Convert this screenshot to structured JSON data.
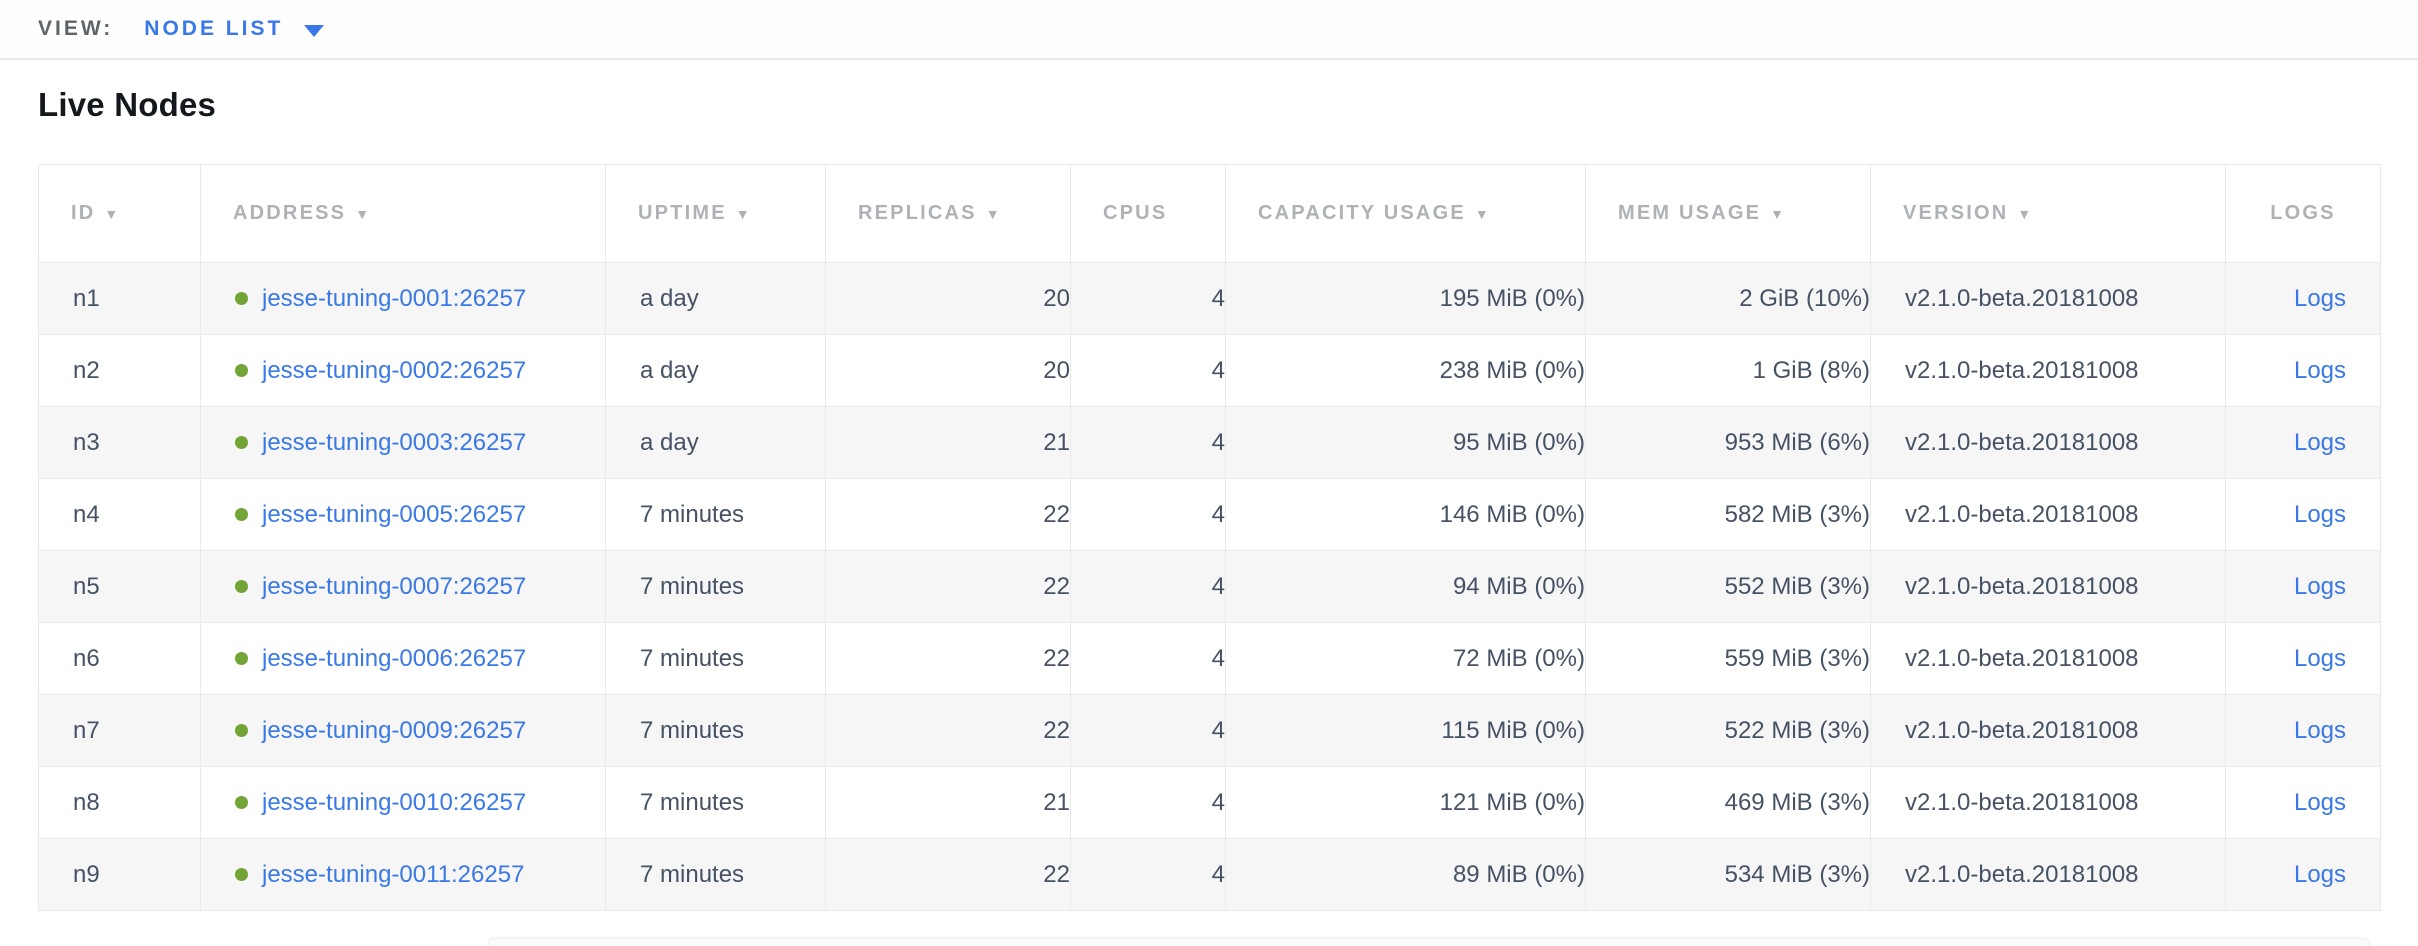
{
  "view_bar": {
    "label": "VIEW:",
    "selected": "NODE LIST"
  },
  "page": {
    "heading": "Live Nodes"
  },
  "colors": {
    "accent_blue": "#3b78e7",
    "link_blue": "#3b78e7",
    "live_green": "#73a438",
    "header_gray": "#aeb2b6",
    "cell_text": "#465264",
    "row_stripe": "#f6f6f6",
    "border": "#e9e9e9"
  },
  "table": {
    "columns": [
      {
        "key": "id",
        "label": "ID",
        "sortable": true,
        "align": "left"
      },
      {
        "key": "address",
        "label": "ADDRESS",
        "sortable": true,
        "align": "left"
      },
      {
        "key": "uptime",
        "label": "UPTIME",
        "sortable": true,
        "align": "left"
      },
      {
        "key": "replicas",
        "label": "REPLICAS",
        "sortable": true,
        "align": "right"
      },
      {
        "key": "cpus",
        "label": "CPUS",
        "sortable": false,
        "align": "right"
      },
      {
        "key": "capacity",
        "label": "CAPACITY USAGE",
        "sortable": true,
        "align": "right"
      },
      {
        "key": "mem",
        "label": "MEM USAGE",
        "sortable": true,
        "align": "right"
      },
      {
        "key": "version",
        "label": "VERSION",
        "sortable": true,
        "align": "left"
      },
      {
        "key": "logs",
        "label": "LOGS",
        "sortable": false,
        "align": "center"
      }
    ],
    "rows": [
      {
        "id": "n1",
        "status": "live",
        "address": "jesse-tuning-0001:26257",
        "uptime": "a day",
        "replicas": "20",
        "cpus": "4",
        "capacity": "195 MiB (0%)",
        "mem": "2 GiB (10%)",
        "version": "v2.1.0-beta.20181008",
        "logs": "Logs"
      },
      {
        "id": "n2",
        "status": "live",
        "address": "jesse-tuning-0002:26257",
        "uptime": "a day",
        "replicas": "20",
        "cpus": "4",
        "capacity": "238 MiB (0%)",
        "mem": "1 GiB (8%)",
        "version": "v2.1.0-beta.20181008",
        "logs": "Logs"
      },
      {
        "id": "n3",
        "status": "live",
        "address": "jesse-tuning-0003:26257",
        "uptime": "a day",
        "replicas": "21",
        "cpus": "4",
        "capacity": "95 MiB (0%)",
        "mem": "953 MiB (6%)",
        "version": "v2.1.0-beta.20181008",
        "logs": "Logs"
      },
      {
        "id": "n4",
        "status": "live",
        "address": "jesse-tuning-0005:26257",
        "uptime": "7 minutes",
        "replicas": "22",
        "cpus": "4",
        "capacity": "146 MiB (0%)",
        "mem": "582 MiB (3%)",
        "version": "v2.1.0-beta.20181008",
        "logs": "Logs"
      },
      {
        "id": "n5",
        "status": "live",
        "address": "jesse-tuning-0007:26257",
        "uptime": "7 minutes",
        "replicas": "22",
        "cpus": "4",
        "capacity": "94 MiB (0%)",
        "mem": "552 MiB (3%)",
        "version": "v2.1.0-beta.20181008",
        "logs": "Logs"
      },
      {
        "id": "n6",
        "status": "live",
        "address": "jesse-tuning-0006:26257",
        "uptime": "7 minutes",
        "replicas": "22",
        "cpus": "4",
        "capacity": "72 MiB (0%)",
        "mem": "559 MiB (3%)",
        "version": "v2.1.0-beta.20181008",
        "logs": "Logs"
      },
      {
        "id": "n7",
        "status": "live",
        "address": "jesse-tuning-0009:26257",
        "uptime": "7 minutes",
        "replicas": "22",
        "cpus": "4",
        "capacity": "115 MiB (0%)",
        "mem": "522 MiB (3%)",
        "version": "v2.1.0-beta.20181008",
        "logs": "Logs"
      },
      {
        "id": "n8",
        "status": "live",
        "address": "jesse-tuning-0010:26257",
        "uptime": "7 minutes",
        "replicas": "21",
        "cpus": "4",
        "capacity": "121 MiB (0%)",
        "mem": "469 MiB (3%)",
        "version": "v2.1.0-beta.20181008",
        "logs": "Logs"
      },
      {
        "id": "n9",
        "status": "live",
        "address": "jesse-tuning-0011:26257",
        "uptime": "7 minutes",
        "replicas": "22",
        "cpus": "4",
        "capacity": "89 MiB (0%)",
        "mem": "534 MiB (3%)",
        "version": "v2.1.0-beta.20181008",
        "logs": "Logs"
      }
    ]
  }
}
